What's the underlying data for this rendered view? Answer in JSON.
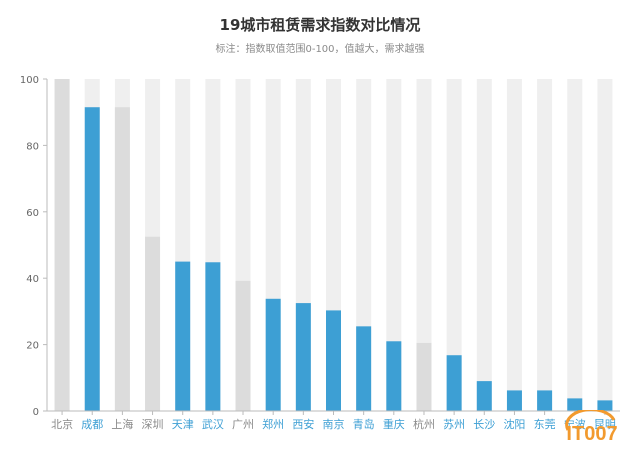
{
  "chart_data": {
    "type": "bar",
    "title": "19城市租赁需求指数对比情况",
    "subtitle": "标注：指数取值范围0-100，值越大，需求越强",
    "categories": [
      "北京",
      "成都",
      "上海",
      "深圳",
      "天津",
      "武汉",
      "广州",
      "郑州",
      "西安",
      "南京",
      "青岛",
      "重庆",
      "杭州",
      "苏州",
      "长沙",
      "沈阳",
      "东莞",
      "宁波",
      "昆明"
    ],
    "values": [
      100,
      91.5,
      91.5,
      52.5,
      45,
      44.8,
      39.2,
      33.8,
      32.5,
      30.3,
      25.5,
      21,
      20.5,
      16.8,
      9,
      6.2,
      6.2,
      3.8,
      3.2
    ],
    "highlighted": [
      false,
      true,
      false,
      false,
      true,
      true,
      false,
      true,
      true,
      true,
      true,
      true,
      false,
      true,
      true,
      true,
      true,
      true,
      true
    ],
    "background_value": 100,
    "ylim": [
      0,
      100
    ],
    "yticks": [
      0,
      20,
      40,
      60,
      80,
      100
    ],
    "xlabel": "",
    "ylabel": "",
    "colors": {
      "highlight": "#3d9fd4",
      "normal": "#dcdcdc",
      "track": "#efefef",
      "highlight_label": "#3d9fd4",
      "normal_label": "#8a8a8a",
      "axis": "#bbbbbb",
      "tick_text": "#666666"
    }
  },
  "watermark": {
    "text": "IT007"
  }
}
